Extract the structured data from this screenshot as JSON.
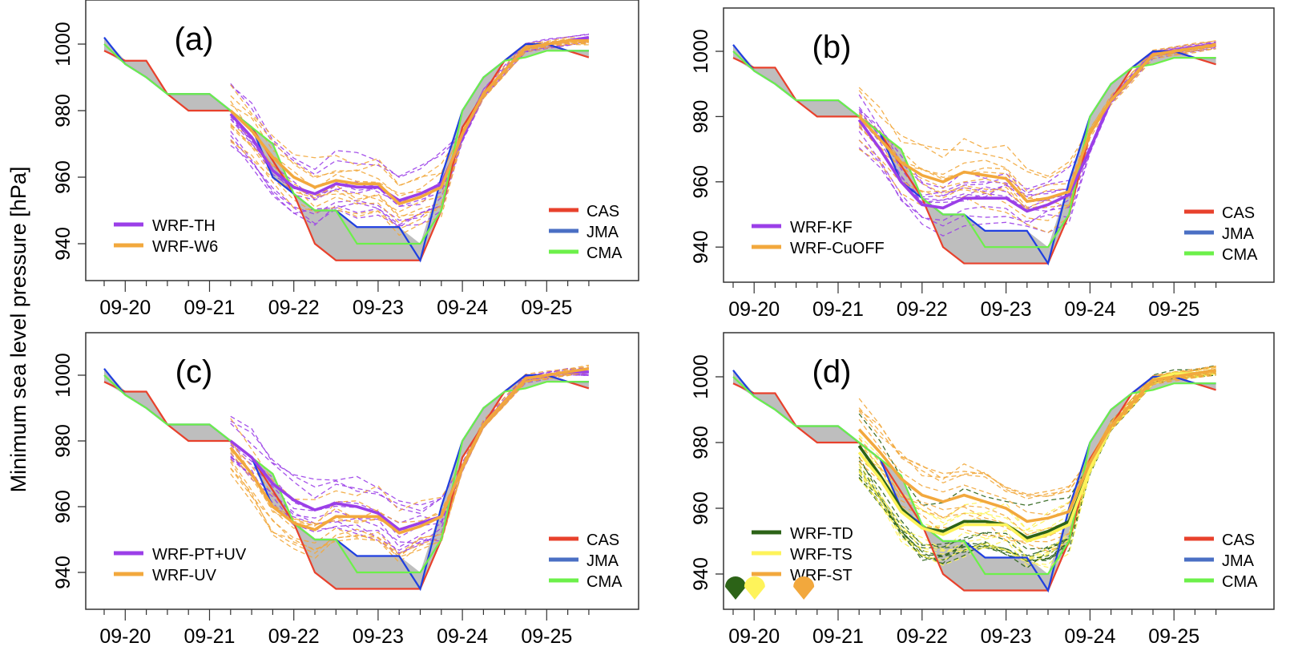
{
  "figure": {
    "ylabel": "Minimum sea level pressure [hPa]"
  },
  "chart_data": [
    {
      "type": "line",
      "panel_label": "(a)",
      "xlabel": "",
      "ylabel": "Minimum sea level pressure [hPa]",
      "ylim": [
        925,
        1013
      ],
      "yticks": [
        940,
        960,
        980,
        1000
      ],
      "xtick_labels": [
        "09-20",
        "09-21",
        "09-22",
        "09-23",
        "09-24",
        "09-25"
      ],
      "x_unit": "6-hourly time steps; first point 09-19 18:00, tick 09-20 at step 1",
      "observations": {
        "x": [
          0,
          1,
          2,
          3,
          4,
          5,
          6,
          7,
          8,
          9,
          10,
          11,
          12,
          13,
          14,
          15,
          16,
          17,
          18,
          19,
          20,
          21,
          22,
          23
        ],
        "series": [
          {
            "name": "CAS",
            "color": "#e8412c",
            "values": [
              998,
              995,
              995,
              985,
              980,
              980,
              980,
              975,
              965,
              955,
              940,
              935,
              935,
              935,
              935,
              935,
              950,
              975,
              985,
              995,
              1000,
              1000,
              998,
              996
            ]
          },
          {
            "name": "JMA",
            "color": "#1f3fe0",
            "values": [
              1002,
              994,
              990,
              985,
              985,
              985,
              980,
              975,
              960,
              955,
              950,
              950,
              945,
              945,
              945,
              935,
              960,
              980,
              990,
              995,
              1000,
              1000,
              998,
              998
            ]
          },
          {
            "name": "CMA",
            "color": "#6cf04a",
            "values": [
              1000,
              994,
              990,
              985,
              985,
              985,
              980,
              975,
              970,
              955,
              950,
              950,
              940,
              940,
              940,
              940,
              950,
              980,
              990,
              995,
              996,
              998,
              998,
              998
            ]
          }
        ],
        "shading_color": "#bebebe"
      },
      "models": [
        {
          "name": "WRF-TH",
          "color": "#9b3fe8",
          "x": [
            6,
            7,
            8,
            9,
            10,
            11,
            12,
            13,
            14,
            15,
            16,
            17,
            18,
            19,
            20,
            21,
            22,
            23
          ],
          "values": [
            979,
            972,
            962,
            957,
            955,
            958,
            957,
            957,
            953,
            955,
            958,
            972,
            985,
            992,
            999,
            1000,
            1001,
            1002
          ]
        },
        {
          "name": "WRF-W6",
          "color": "#f2a83d",
          "x": [
            6,
            7,
            8,
            9,
            10,
            11,
            12,
            13,
            14,
            15,
            16,
            17,
            18,
            19,
            20,
            21,
            22,
            23
          ],
          "values": [
            980,
            974,
            966,
            960,
            957,
            959,
            958,
            958,
            952,
            954,
            957,
            973,
            985,
            992,
            999,
            1000,
            1001,
            1001
          ]
        }
      ],
      "ensemble_members": "dashed lines in model colors, spread approx 943–987 hPa",
      "legend_models": [
        "WRF-TH",
        "WRF-W6"
      ],
      "legend_obs": [
        "CAS",
        "JMA",
        "CMA"
      ],
      "legend_placement": "bottom-left (models), bottom-right (observations)"
    },
    {
      "type": "line",
      "panel_label": "(b)",
      "ylim": [
        925,
        1013
      ],
      "yticks": [
        940,
        960,
        980,
        1000
      ],
      "xtick_labels": [
        "09-20",
        "09-21",
        "09-22",
        "09-23",
        "09-24",
        "09-25"
      ],
      "observations": "same as panel (a)",
      "models": [
        {
          "name": "WRF-KF",
          "color": "#9b3fe8",
          "x": [
            6,
            7,
            8,
            9,
            10,
            11,
            12,
            13,
            14,
            15,
            16,
            17,
            18,
            19,
            20,
            21,
            22,
            23
          ],
          "values": [
            979,
            970,
            960,
            953,
            952,
            955,
            955,
            955,
            951,
            953,
            956,
            970,
            985,
            992,
            999,
            1000,
            1001,
            1002
          ]
        },
        {
          "name": "WRF-CuOFF",
          "color": "#f2a83d",
          "x": [
            6,
            7,
            8,
            9,
            10,
            11,
            12,
            13,
            14,
            15,
            16,
            17,
            18,
            19,
            20,
            21,
            22,
            23
          ],
          "values": [
            980,
            973,
            966,
            962,
            960,
            963,
            962,
            961,
            954,
            955,
            957,
            975,
            985,
            992,
            999,
            1000,
            1001,
            1002
          ]
        }
      ],
      "ensemble_members": "dashed lines in model colors, spread approx 943–987 hPa",
      "legend_models": [
        "WRF-KF",
        "WRF-CuOFF"
      ],
      "legend_obs": [
        "CAS",
        "JMA",
        "CMA"
      ]
    },
    {
      "type": "line",
      "panel_label": "(c)",
      "ylim": [
        925,
        1013
      ],
      "yticks": [
        940,
        960,
        980,
        1000
      ],
      "xtick_labels": [
        "09-20",
        "09-21",
        "09-22",
        "09-23",
        "09-24",
        "09-25"
      ],
      "observations": "same as panel (a)",
      "models": [
        {
          "name": "WRF-PT+UV",
          "color": "#9b3fe8",
          "x": [
            6,
            7,
            8,
            9,
            10,
            11,
            12,
            13,
            14,
            15,
            16,
            17,
            18,
            19,
            20,
            21,
            22,
            23
          ],
          "values": [
            980,
            975,
            967,
            962,
            959,
            961,
            960,
            958,
            953,
            955,
            957,
            972,
            985,
            992,
            999,
            1000,
            1001,
            1001
          ]
        },
        {
          "name": "WRF-UV",
          "color": "#f2a83d",
          "x": [
            6,
            7,
            8,
            9,
            10,
            11,
            12,
            13,
            14,
            15,
            16,
            17,
            18,
            19,
            20,
            21,
            22,
            23
          ],
          "values": [
            978,
            970,
            960,
            955,
            953,
            957,
            957,
            957,
            952,
            954,
            957,
            972,
            985,
            992,
            999,
            1000,
            1001,
            1002
          ]
        }
      ],
      "ensemble_members": "dashed lines in model colors, spread approx 943–987 hPa",
      "legend_models": [
        "WRF-PT+UV",
        "WRF-UV"
      ],
      "legend_obs": [
        "CAS",
        "JMA",
        "CMA"
      ]
    },
    {
      "type": "line",
      "panel_label": "(d)",
      "ylim": [
        925,
        1013
      ],
      "yticks": [
        940,
        960,
        980,
        1000
      ],
      "xtick_labels": [
        "09-20",
        "09-21",
        "09-22",
        "09-23",
        "09-24",
        "09-25"
      ],
      "observations": "same as panel (a)",
      "models": [
        {
          "name": "WRF-TD",
          "color": "#2c6317",
          "x": [
            6,
            7,
            8,
            9,
            10,
            11,
            12,
            13,
            14,
            15,
            16,
            17,
            18,
            19,
            20,
            21,
            22,
            23
          ],
          "values": [
            979,
            970,
            960,
            954,
            953,
            956,
            956,
            955,
            951,
            953,
            956,
            972,
            985,
            992,
            999,
            1001,
            1001,
            1002
          ]
        },
        {
          "name": "WRF-TS",
          "color": "#fef35a",
          "x": [
            6,
            7,
            8,
            9,
            10,
            11,
            12,
            13,
            14,
            15,
            16,
            17,
            18,
            19,
            20,
            21,
            22,
            23
          ],
          "values": [
            977,
            969,
            959,
            954,
            952,
            955,
            955,
            955,
            950,
            952,
            955,
            972,
            985,
            992,
            999,
            1001,
            1001,
            1002
          ]
        },
        {
          "name": "WRF-ST",
          "color": "#f2a83d",
          "x": [
            6,
            7,
            8,
            9,
            10,
            11,
            12,
            13,
            14,
            15,
            16,
            17,
            18,
            19,
            20,
            21,
            22,
            23
          ],
          "values": [
            984,
            977,
            969,
            964,
            962,
            964,
            962,
            960,
            956,
            957,
            959,
            974,
            985,
            992,
            999,
            1000,
            1001,
            1002
          ]
        }
      ],
      "ensemble_members": "dashed lines in model colors, spread approx 943–987 hPa",
      "markers": [
        {
          "name": "WRF-TD start",
          "color": "#2c6317",
          "x": 0
        },
        {
          "name": "WRF-TS start",
          "color": "#fef35a",
          "x": 0.7
        },
        {
          "name": "WRF-ST start",
          "color": "#f2a83d",
          "x": 2.5
        }
      ],
      "legend_models": [
        "WRF-TD",
        "WRF-TS",
        "WRF-ST"
      ],
      "legend_obs": [
        "CAS",
        "JMA",
        "CMA"
      ]
    }
  ]
}
